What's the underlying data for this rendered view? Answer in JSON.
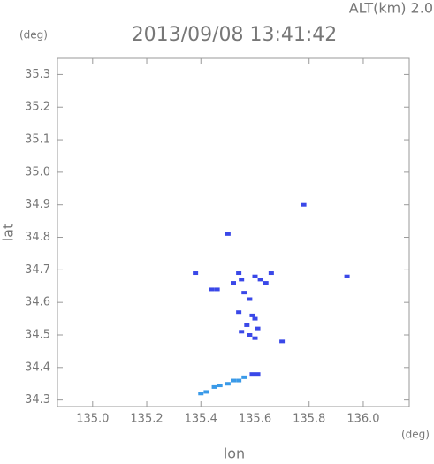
{
  "chart_data": {
    "type": "scatter",
    "title": "2013/09/08 13:41:42",
    "subtitle": "ALT(km) 2.0",
    "x_label": "lon",
    "y_label": "lat",
    "x_unit": "(deg)",
    "y_unit": "(deg)",
    "xlim": [
      134.87,
      136.17
    ],
    "xticks": [
      {
        "value": 135,
        "label": "135.0"
      },
      135.2,
      135.4,
      135.6,
      135.8,
      {
        "value": 136,
        "label": "136.0"
      }
    ],
    "ylim": [
      34.28,
      35.35
    ],
    "yticks": [
      34.3,
      34.4,
      34.5,
      34.6,
      34.7,
      34.8,
      34.9,
      {
        "value": 35,
        "label": "35.0"
      },
      35.1,
      35.2,
      35.3
    ],
    "series": [
      {
        "color": "#3a48e8",
        "x": [
          135.78,
          135.5,
          135.38,
          135.44,
          135.46,
          135.52,
          135.54,
          135.55,
          135.6,
          135.62,
          135.66,
          135.64,
          135.56,
          135.58,
          135.54,
          135.59,
          135.6,
          135.57,
          135.61,
          135.55,
          135.58,
          135.6,
          135.7,
          135.94,
          135.59,
          135.61
        ],
        "values": [
          34.9,
          34.81,
          34.69,
          34.64,
          34.64,
          34.66,
          34.69,
          34.67,
          34.68,
          34.67,
          34.69,
          34.66,
          34.63,
          34.61,
          34.57,
          34.56,
          34.55,
          34.53,
          34.52,
          34.51,
          34.5,
          34.49,
          34.48,
          34.68,
          34.38,
          34.38
        ]
      },
      {
        "color": "#3a9ae8",
        "x": [
          135.4,
          135.42,
          135.45,
          135.47,
          135.5,
          135.52,
          135.54,
          135.56
        ],
        "values": [
          34.32,
          34.325,
          34.34,
          34.345,
          34.35,
          34.36,
          34.36,
          34.37
        ]
      }
    ]
  }
}
